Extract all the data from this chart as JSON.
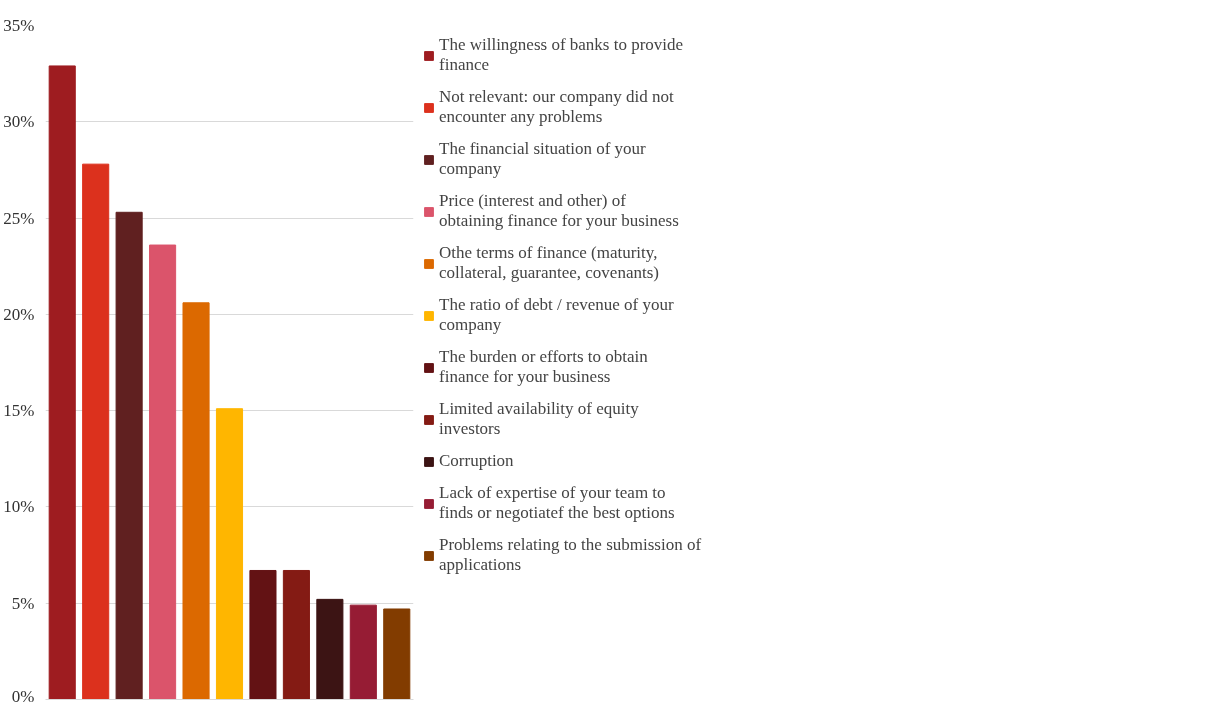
{
  "chart_data": {
    "type": "bar",
    "categories": [
      null,
      null,
      null,
      null,
      null,
      null,
      null,
      null,
      null,
      null,
      null
    ],
    "series": [
      {
        "name": "The willingness of banks to provide finance",
        "color": "#9e1c20",
        "values": [
          32.9,
          null,
          null,
          null,
          null,
          null,
          null,
          null,
          null,
          null,
          null
        ]
      },
      {
        "name": "Not relevant: our company did not encounter any problems",
        "color": "#dc311d",
        "values": [
          null,
          27.8,
          null,
          null,
          null,
          null,
          null,
          null,
          null,
          null,
          null
        ]
      },
      {
        "name": "The financial situation of your company",
        "color": "#602020",
        "values": [
          null,
          null,
          25.3,
          null,
          null,
          null,
          null,
          null,
          null,
          null,
          null
        ]
      },
      {
        "name": "Price (interest and other) of obtaining finance for your business",
        "color": "#db546b",
        "values": [
          null,
          null,
          null,
          23.6,
          null,
          null,
          null,
          null,
          null,
          null,
          null
        ]
      },
      {
        "name": "Othe terms of finance (maturity, collateral, guarantee, covenants)",
        "color": "#dc6900",
        "values": [
          null,
          null,
          null,
          null,
          20.6,
          null,
          null,
          null,
          null,
          null,
          null
        ]
      },
      {
        "name": "The ratio of debt / revenue of your company",
        "color": "#ffb600",
        "values": [
          null,
          null,
          null,
          null,
          null,
          15.1,
          null,
          null,
          null,
          null,
          null
        ]
      },
      {
        "name": "The burden or efforts to obtain finance for your business",
        "color": "#631214",
        "values": [
          null,
          null,
          null,
          null,
          null,
          null,
          6.7,
          null,
          null,
          null,
          null
        ]
      },
      {
        "name": "Limited availability of equity investors",
        "color": "#841b14",
        "values": [
          null,
          null,
          null,
          null,
          null,
          null,
          null,
          6.7,
          null,
          null,
          null
        ]
      },
      {
        "name": "Corruption",
        "color": "#3c1414",
        "values": [
          null,
          null,
          null,
          null,
          null,
          null,
          null,
          null,
          5.2,
          null,
          null
        ]
      },
      {
        "name": "Lack of expertise of your team to finds or negotiatef the best options",
        "color": "#961c34",
        "values": [
          null,
          null,
          null,
          null,
          null,
          null,
          null,
          null,
          null,
          4.9,
          null
        ]
      },
      {
        "name": "Problems relating to the submission of applications",
        "color": "#823c00",
        "values": [
          null,
          null,
          null,
          null,
          null,
          null,
          null,
          null,
          null,
          null,
          4.7
        ]
      }
    ],
    "ylim": [
      0,
      35
    ],
    "yticks": [
      {
        "value": 0,
        "label": "0%"
      },
      {
        "value": 5,
        "label": "5%"
      },
      {
        "value": 10,
        "label": "10%"
      },
      {
        "value": 15,
        "label": "15%"
      },
      {
        "value": 20,
        "label": "20%"
      },
      {
        "value": 25,
        "label": "25%"
      },
      {
        "value": 30,
        "label": "30%"
      },
      {
        "value": 35,
        "label": "35%"
      }
    ],
    "grid": "y",
    "legend": "right"
  }
}
